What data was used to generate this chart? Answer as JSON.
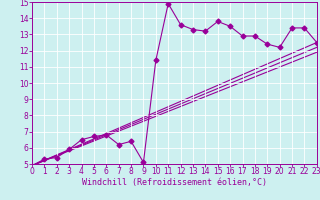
{
  "xlabel": "Windchill (Refroidissement éolien,°C)",
  "bg_color": "#cdf0f0",
  "line_color": "#990099",
  "xlim": [
    0,
    23
  ],
  "ylim": [
    5,
    15
  ],
  "xticks": [
    0,
    1,
    2,
    3,
    4,
    5,
    6,
    7,
    8,
    9,
    10,
    11,
    12,
    13,
    14,
    15,
    16,
    17,
    18,
    19,
    20,
    21,
    22,
    23
  ],
  "yticks": [
    5,
    6,
    7,
    8,
    9,
    10,
    11,
    12,
    13,
    14,
    15
  ],
  "series_main": {
    "x": [
      0,
      1,
      2,
      3,
      4,
      5,
      6,
      7,
      8,
      9,
      10,
      11,
      12,
      13,
      14,
      15,
      16,
      17,
      18,
      19,
      20,
      21,
      22,
      23
    ],
    "y": [
      4.9,
      5.3,
      5.4,
      5.9,
      6.5,
      6.7,
      6.8,
      6.2,
      6.4,
      5.1,
      11.4,
      14.9,
      13.6,
      13.3,
      13.2,
      13.8,
      13.5,
      12.9,
      12.9,
      12.4,
      12.2,
      13.4,
      13.4,
      12.5
    ]
  },
  "series_lines": [
    {
      "x": [
        0,
        23
      ],
      "y": [
        4.9,
        12.5
      ]
    },
    {
      "x": [
        0,
        23
      ],
      "y": [
        4.9,
        12.2
      ]
    },
    {
      "x": [
        0,
        23
      ],
      "y": [
        4.9,
        11.9
      ]
    }
  ],
  "marker": "D",
  "markersize": 2.5,
  "linewidth": 0.8,
  "tick_fontsize": 5.5,
  "xlabel_fontsize": 6.0
}
